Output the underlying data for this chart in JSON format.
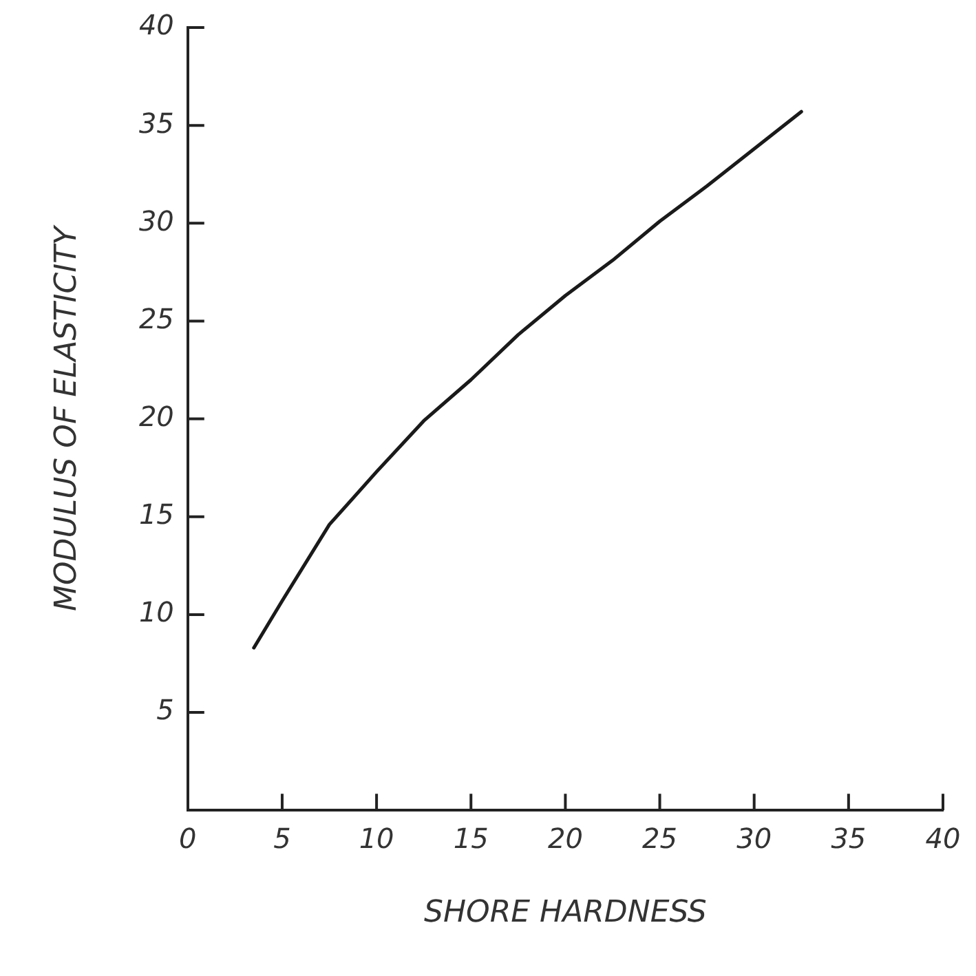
{
  "chart_data": {
    "type": "line",
    "xlabel": "SHORE HARDNESS",
    "ylabel": "MODULUS OF ELASTICITY",
    "x": [
      3.5,
      5,
      7.5,
      10,
      12.5,
      15,
      17.5,
      20,
      22.5,
      25,
      27.5,
      30,
      32.5
    ],
    "series": [
      {
        "color": "#1a1a1a",
        "values": [
          8.3,
          10.7,
          14.6,
          17.3,
          19.9,
          22,
          24.3,
          26.3,
          28.1,
          30.1,
          31.9,
          33.8,
          35.7
        ]
      }
    ],
    "xlim": [
      0,
      40
    ],
    "xticks": [
      0,
      5,
      10,
      15,
      20,
      25,
      30,
      35,
      40
    ],
    "ylim": [
      0,
      40
    ],
    "yticks": [
      5,
      10,
      15,
      20,
      25,
      30,
      35,
      40
    ],
    "grid": false,
    "legend": false,
    "marker": "none",
    "line_style": "solid"
  }
}
